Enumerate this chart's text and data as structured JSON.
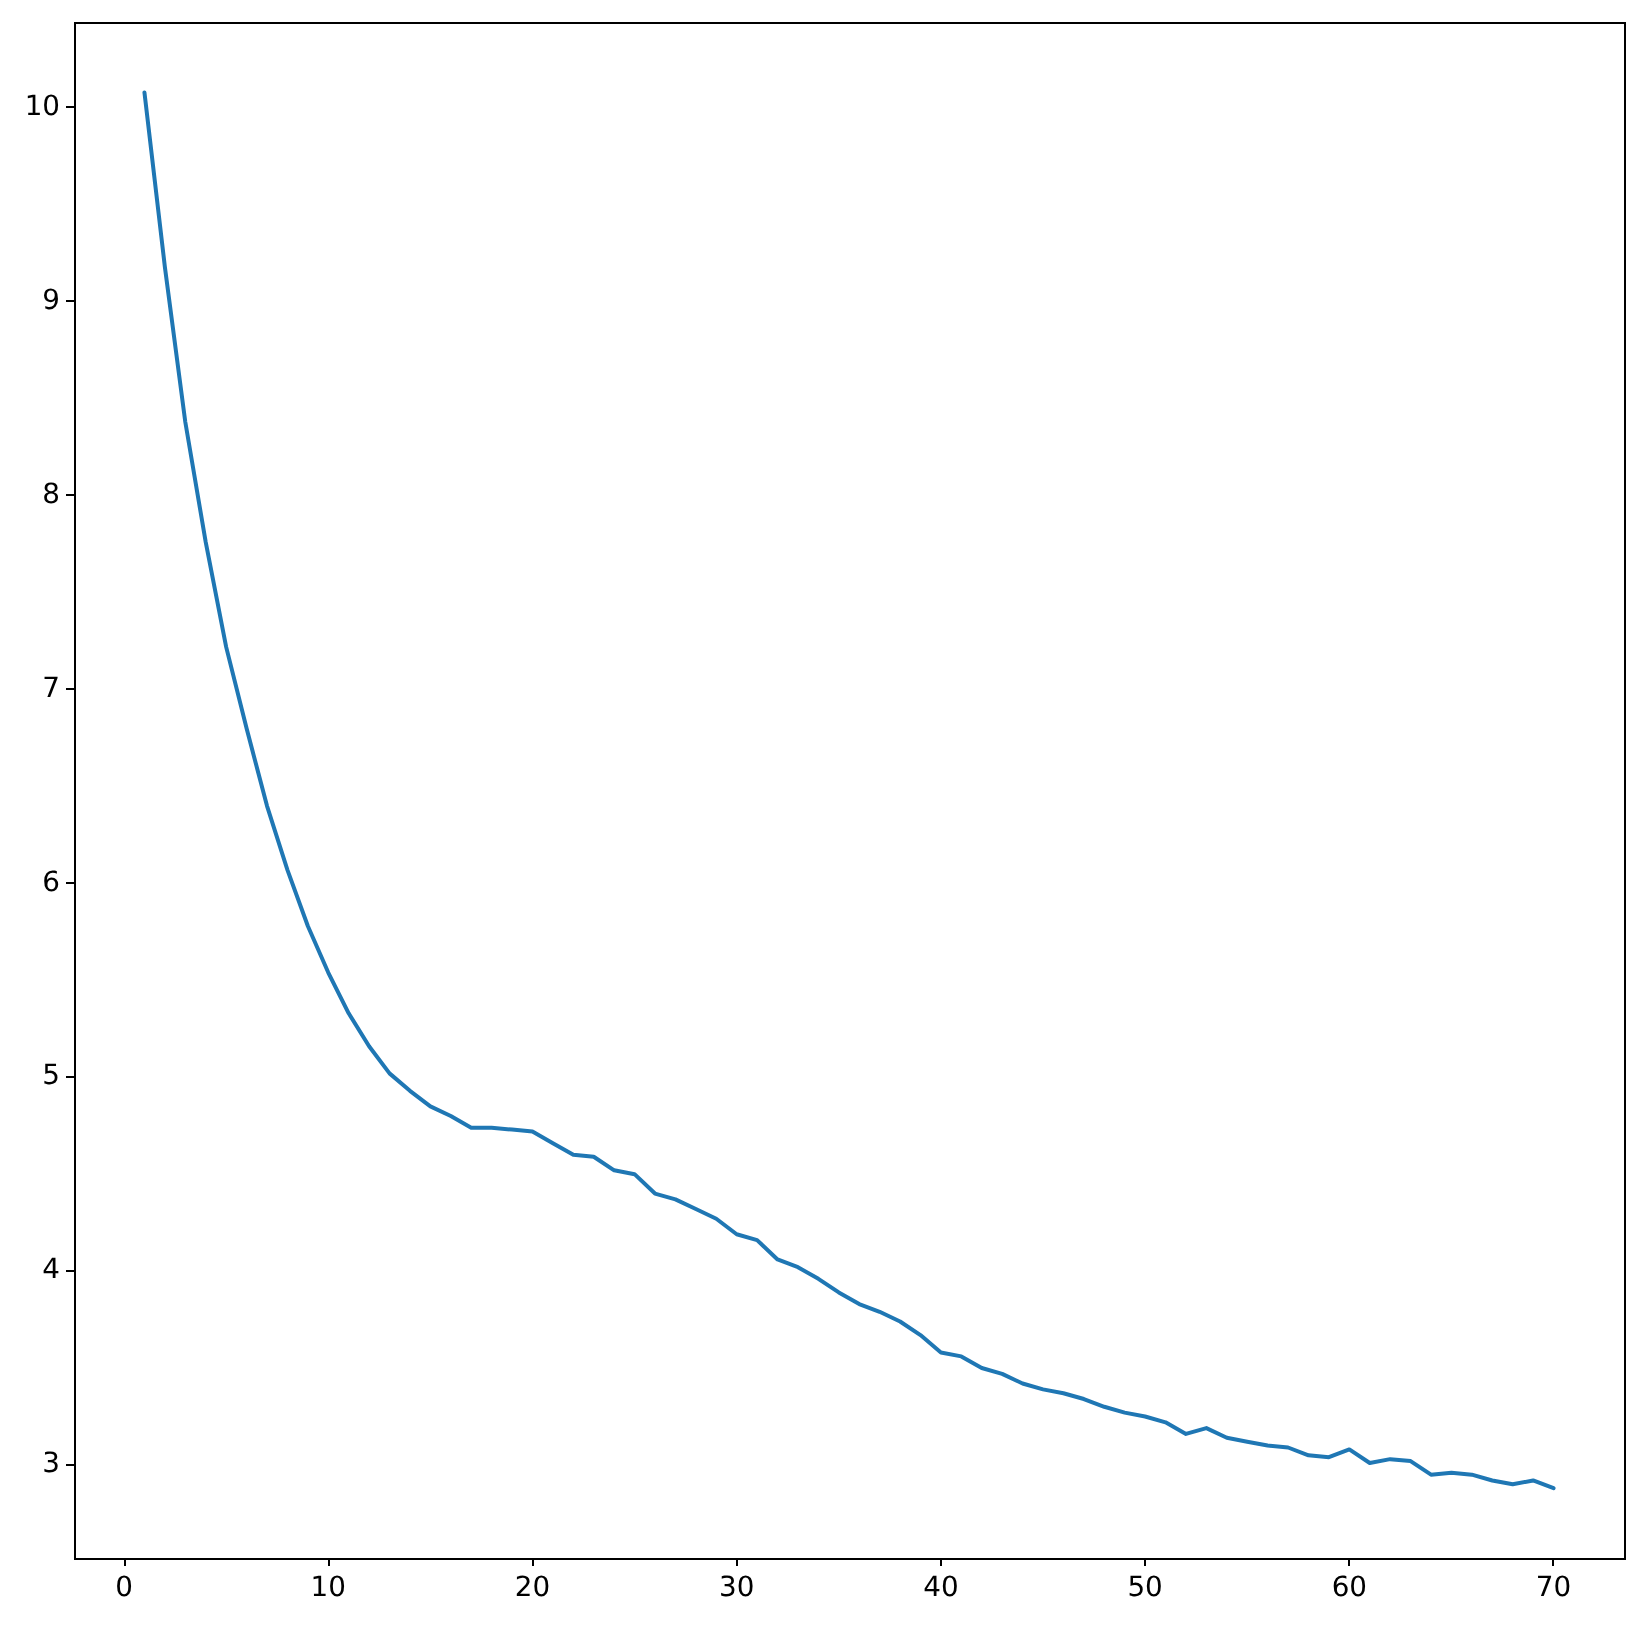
{
  "chart_data": {
    "type": "line",
    "x": [
      1,
      2,
      3,
      4,
      5,
      6,
      7,
      8,
      9,
      10,
      11,
      12,
      13,
      14,
      15,
      16,
      17,
      18,
      19,
      20,
      21,
      22,
      23,
      24,
      25,
      26,
      27,
      28,
      29,
      30,
      31,
      32,
      33,
      34,
      35,
      36,
      37,
      38,
      39,
      40,
      41,
      42,
      43,
      44,
      45,
      46,
      47,
      48,
      49,
      50,
      51,
      52,
      53,
      54,
      55,
      56,
      57,
      58,
      59,
      60,
      61,
      62,
      63,
      64,
      65,
      66,
      67,
      68,
      69,
      70
    ],
    "values": [
      10.08,
      9.18,
      8.38,
      7.76,
      7.22,
      6.8,
      6.4,
      6.07,
      5.78,
      5.54,
      5.33,
      5.16,
      5.02,
      4.93,
      4.85,
      4.8,
      4.74,
      4.74,
      4.73,
      4.72,
      4.66,
      4.6,
      4.59,
      4.52,
      4.5,
      4.4,
      4.37,
      4.32,
      4.27,
      4.19,
      4.16,
      4.06,
      4.02,
      3.96,
      3.89,
      3.83,
      3.79,
      3.74,
      3.67,
      3.58,
      3.56,
      3.5,
      3.47,
      3.42,
      3.39,
      3.37,
      3.34,
      3.3,
      3.27,
      3.25,
      3.22,
      3.16,
      3.19,
      3.14,
      3.12,
      3.1,
      3.09,
      3.05,
      3.04,
      3.08,
      3.01,
      3.03,
      3.02,
      2.95,
      2.96,
      2.95,
      2.92,
      2.9,
      2.92,
      2.88
    ],
    "color": "#1f77b4",
    "xlim": [
      -2.45,
      73.45
    ],
    "ylim": [
      2.52,
      10.44
    ],
    "xticks": [
      0,
      10,
      20,
      30,
      40,
      50,
      60,
      70
    ],
    "yticks": [
      3,
      4,
      5,
      6,
      7,
      8,
      9,
      10
    ]
  }
}
